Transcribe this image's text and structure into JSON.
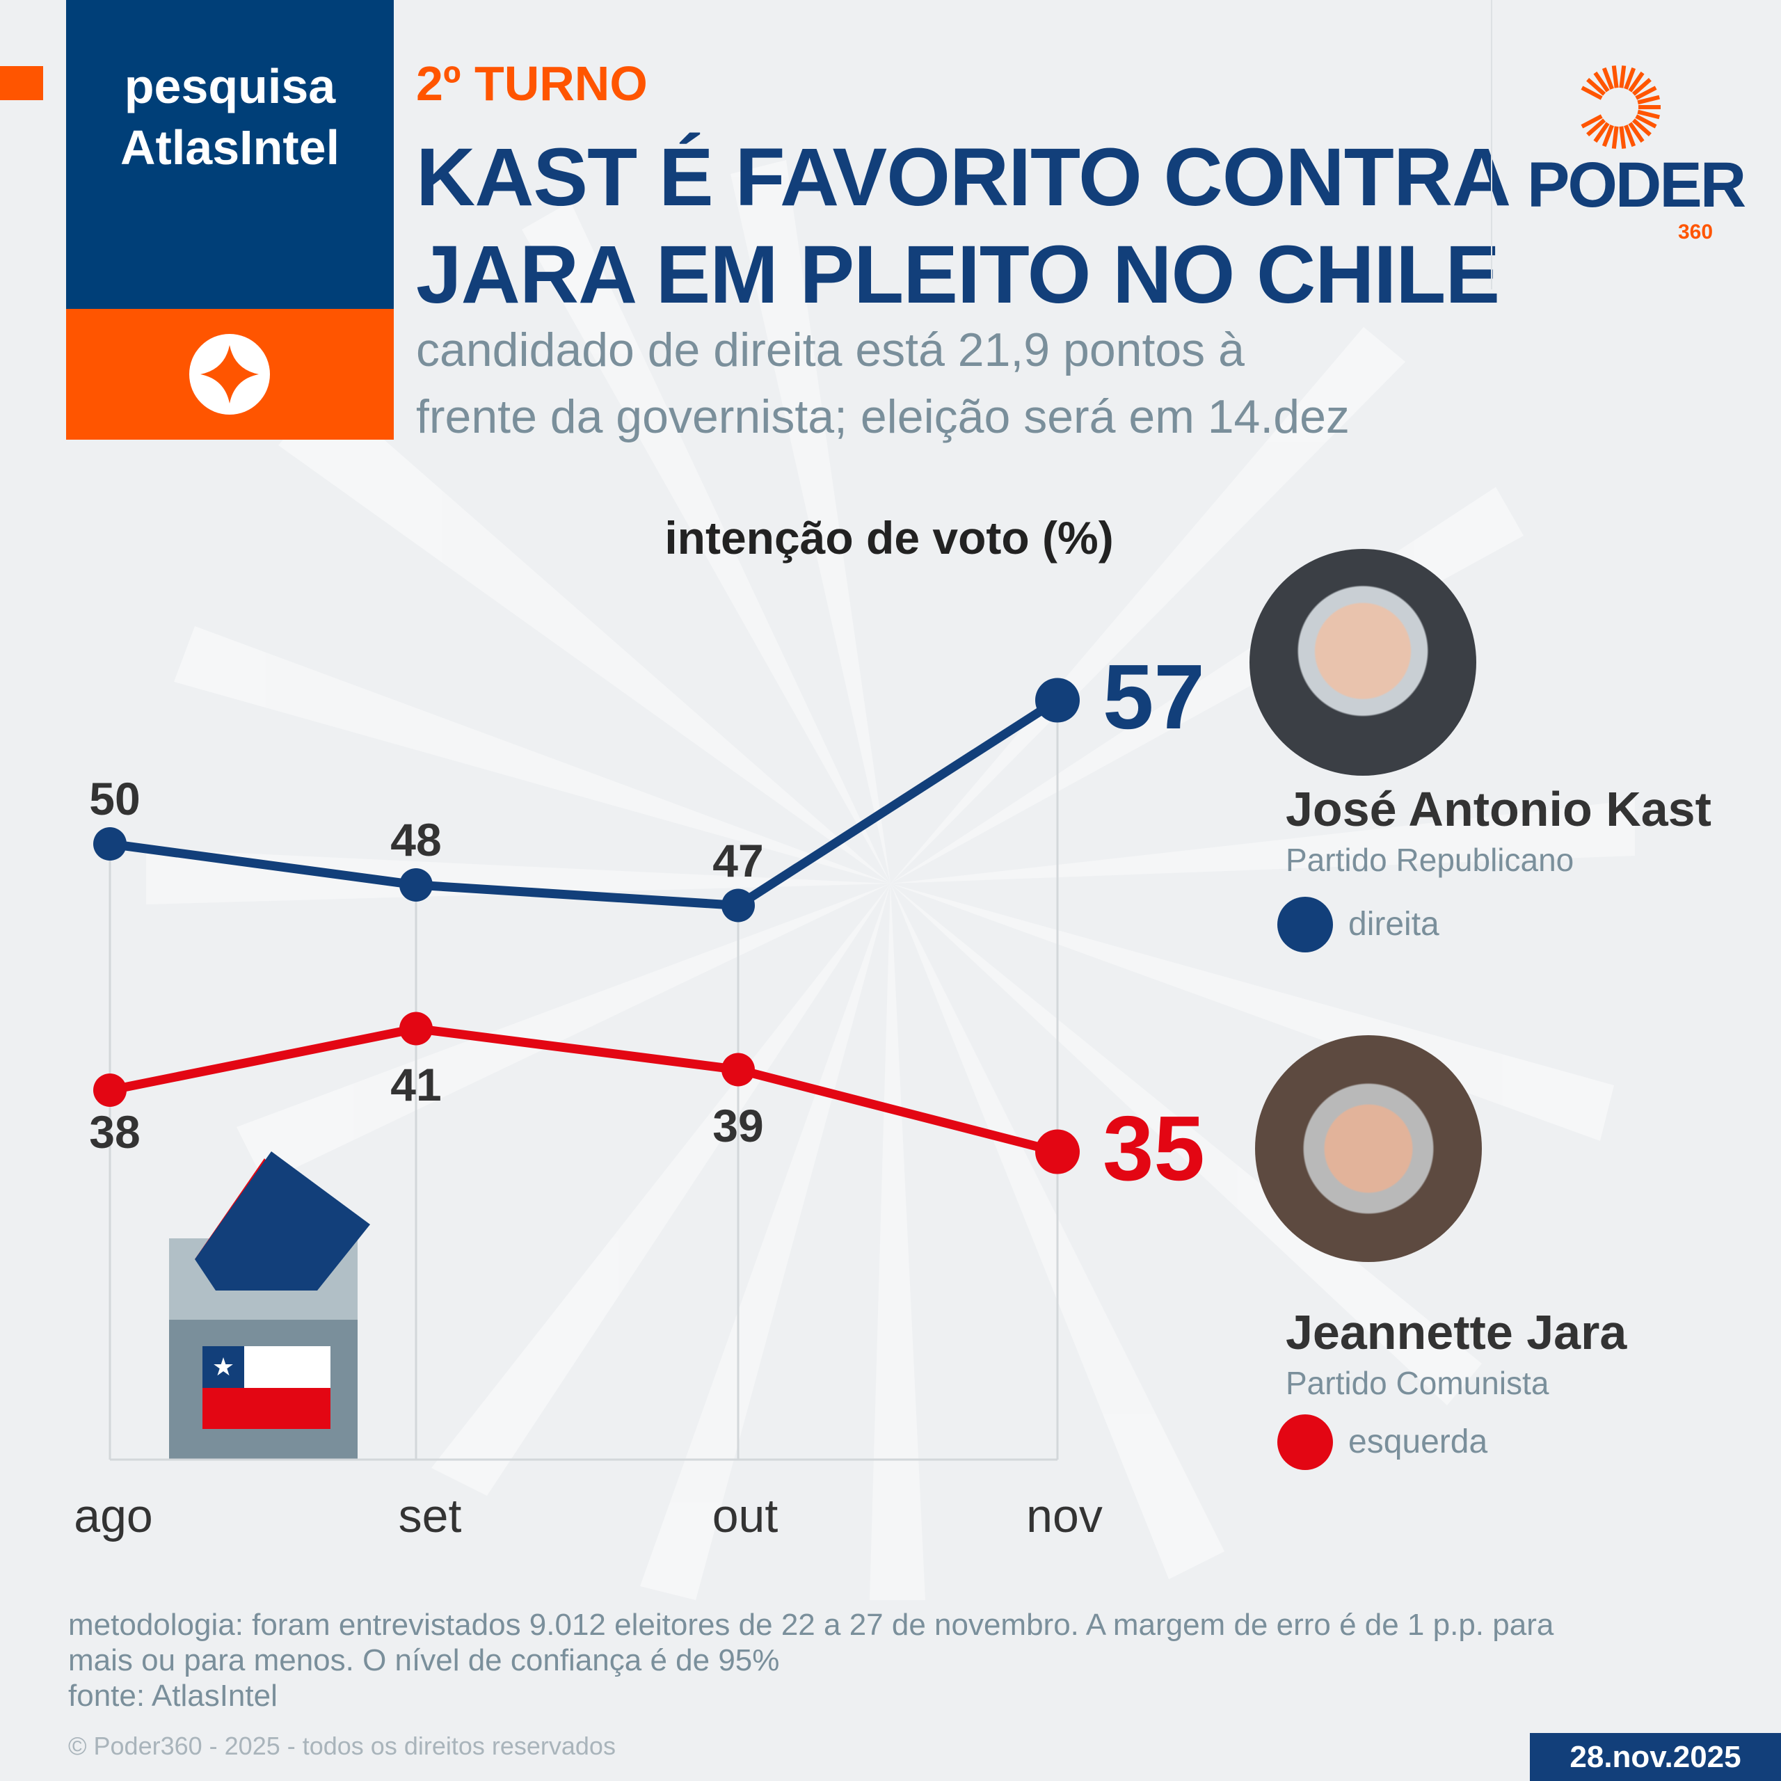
{
  "header": {
    "badge_line1": "pesquisa",
    "badge_line2": "AtlasIntel",
    "kicker": "2º TURNO",
    "title_line1": "KAST É FAVORITO CONTRA",
    "title_line2": "JARA EM PLEITO NO CHILE",
    "subtitle_line1": "candidado de direita está 21,9 pontos à",
    "subtitle_line2": "frente da governista; eleição será em 14.dez",
    "logo_text": "PODER",
    "logo_sub": "360"
  },
  "colors": {
    "blue": "#123f7a",
    "red": "#e30613",
    "orange": "#ff5500"
  },
  "chart_data": {
    "type": "line",
    "title": "intenção de voto (%)",
    "categories": [
      "ago",
      "set",
      "out",
      "nov"
    ],
    "ylim": [
      20,
      60
    ],
    "series": [
      {
        "name": "José Antonio Kast",
        "values": [
          50,
          48,
          47,
          57
        ],
        "labels": [
          "50",
          "48",
          "47",
          "57"
        ]
      },
      {
        "name": "Jeannette Jara",
        "values": [
          38,
          41,
          39,
          35
        ],
        "labels": [
          "38",
          "41",
          "39",
          "35"
        ]
      }
    ]
  },
  "candidates": [
    {
      "name": "José Antonio Kast",
      "party": "Partido Republicano",
      "side": "direita"
    },
    {
      "name": "Jeannette Jara",
      "party": "Partido Comunista",
      "side": "esquerda"
    }
  ],
  "footer": {
    "method_line1": "metodologia: foram entrevistados 9.012 eleitores de 22 a 27 de novembro. A margem de erro é de 1 p.p. para",
    "method_line2": "mais ou para menos. O nível de confiança é de 95%",
    "source": "fonte: AtlasIntel",
    "copyright": "© Poder360 - 2025 - todos os direitos reservados",
    "date": "28.nov.2025"
  }
}
